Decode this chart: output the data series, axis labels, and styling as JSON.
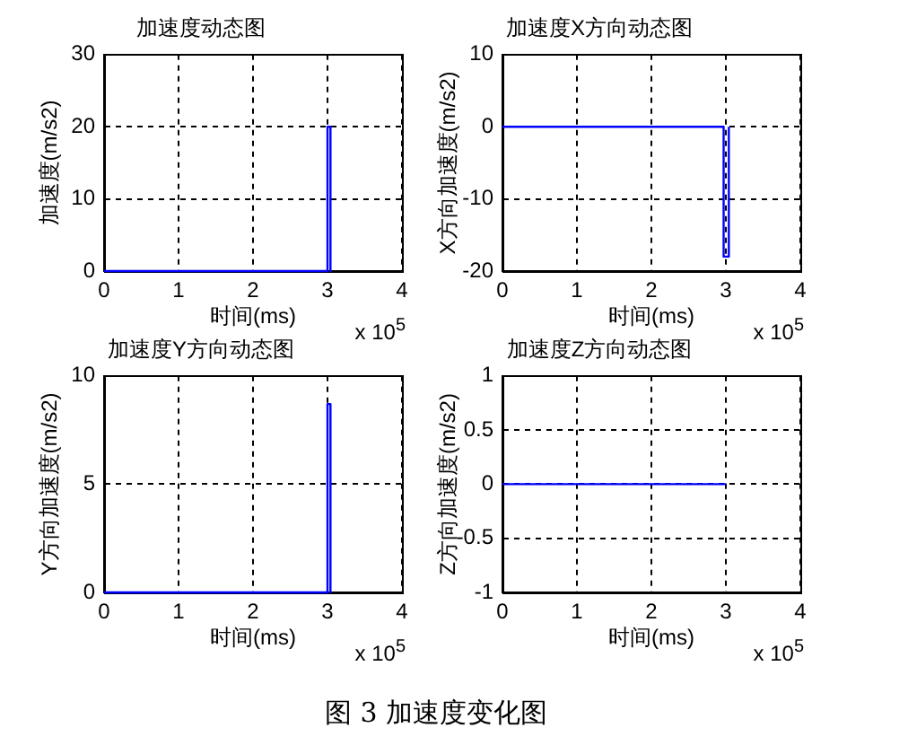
{
  "chart_data": [
    {
      "type": "line",
      "title": "加速度动态图",
      "xlabel": "时间(ms)",
      "ylabel": "加速度(m/s2)",
      "x": [
        0,
        3,
        3,
        3.04,
        3.04
      ],
      "values": [
        0,
        0,
        20,
        20,
        0
      ],
      "color": "#0000ff",
      "xlim": [
        0,
        4
      ],
      "xticks": [
        0,
        1,
        2,
        3,
        4
      ],
      "ylim": [
        0,
        30
      ],
      "yticks": [
        0,
        10,
        20,
        30
      ],
      "grid": true,
      "annotations": [
        "x 10$^{5}$"
      ]
    },
    {
      "type": "line",
      "title": "加速度X方向动态图",
      "xlabel": "时间(ms)",
      "ylabel": "X方向加速度(m/s2)",
      "x": [
        0,
        2.97,
        2.97,
        3.04,
        3.04
      ],
      "values": [
        0,
        0,
        -18,
        -18,
        0
      ],
      "color": "#0000ff",
      "xlim": [
        0,
        4
      ],
      "xticks": [
        0,
        1,
        2,
        3,
        4
      ],
      "ylim": [
        -20,
        10
      ],
      "yticks": [
        -20,
        -10,
        0,
        10
      ],
      "grid": true,
      "annotations": [
        "x 10$^{5}$"
      ]
    },
    {
      "type": "line",
      "title": "加速度Y方向动态图",
      "xlabel": "时间(ms)",
      "ylabel": "Y方向加速度(m/s2)",
      "x": [
        0,
        3,
        3,
        3.04,
        3.04
      ],
      "values": [
        0,
        0,
        8.7,
        8.7,
        0
      ],
      "color": "#0000ff",
      "xlim": [
        0,
        4
      ],
      "xticks": [
        0,
        1,
        2,
        3,
        4
      ],
      "ylim": [
        0,
        10
      ],
      "yticks": [
        0,
        5,
        10
      ],
      "grid": true,
      "annotations": [
        "x 10$^{5}$"
      ]
    },
    {
      "type": "line",
      "title": "加速度Z方向动态图",
      "xlabel": "时间(ms)",
      "ylabel": "Z方向加速度(m/s2)",
      "x": [
        0,
        3
      ],
      "values": [
        0,
        0
      ],
      "color": "#0000ff",
      "xlim": [
        0,
        4
      ],
      "xticks": [
        0,
        1,
        2,
        3,
        4
      ],
      "ylim": [
        -1,
        1
      ],
      "yticks": [
        -1,
        -0.5,
        0,
        0.5,
        1
      ],
      "grid": true,
      "annotations": [
        "x 10$^{5}$"
      ]
    },
    {
      "type": "other",
      "title": "图 3 加速度变化图"
    }
  ]
}
